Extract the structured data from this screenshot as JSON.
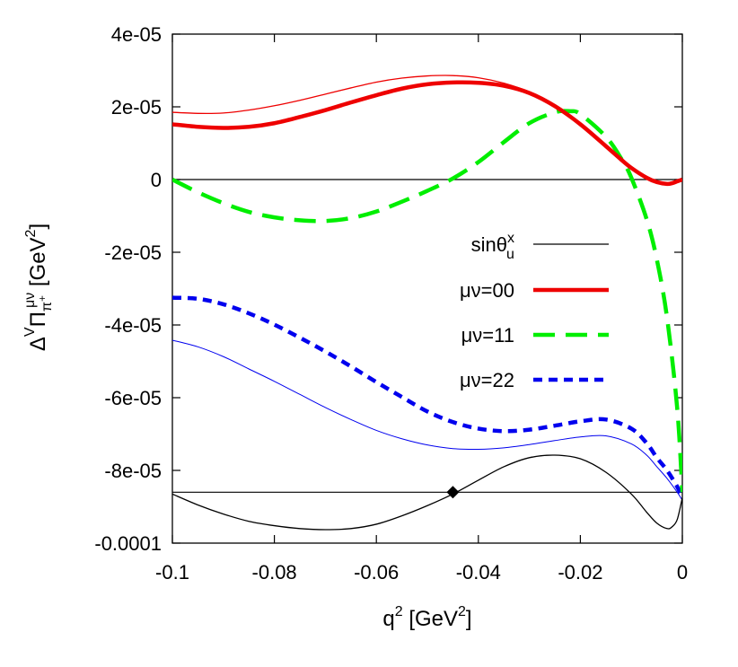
{
  "chart_data": {
    "type": "line",
    "xlabel": {
      "base": "q",
      "sup": "2",
      "rest": " [GeV",
      "sup2": "2",
      "close": "]"
    },
    "ylabel": {
      "delta": "Δ",
      "vsup": "V",
      "pi": "Π",
      "pisub": "π",
      "pisubsup": "+",
      "musup": "μν",
      "unit": " [GeV",
      "unitsup": "2",
      "close": "]"
    },
    "xlim": [
      -0.1,
      0
    ],
    "ylim": [
      -0.0001,
      4e-05
    ],
    "x_ticks": [
      {
        "value": -0.1,
        "label": "-0.1"
      },
      {
        "value": -0.08,
        "label": "-0.08"
      },
      {
        "value": -0.06,
        "label": "-0.06"
      },
      {
        "value": -0.04,
        "label": "-0.04"
      },
      {
        "value": -0.02,
        "label": "-0.02"
      },
      {
        "value": 0,
        "label": "0"
      }
    ],
    "y_ticks": [
      {
        "value": 4e-05,
        "label": "4e-05"
      },
      {
        "value": 2e-05,
        "label": "2e-05"
      },
      {
        "value": 0,
        "label": "0"
      },
      {
        "value": -2e-05,
        "label": "-2e-05"
      },
      {
        "value": -4e-05,
        "label": "-4e-05"
      },
      {
        "value": -6e-05,
        "label": "-6e-05"
      },
      {
        "value": -8e-05,
        "label": "-8e-05"
      },
      {
        "value": -0.0001,
        "label": "-0.0001"
      }
    ],
    "legend_position": "right-middle",
    "zero_line": 0,
    "reference_line": -8.6e-05,
    "marker": {
      "x": -0.045,
      "y": -8.6e-05,
      "shape": "diamond"
    },
    "series": [
      {
        "key": "sin",
        "name": "sinθ",
        "name_sup": "x",
        "name_sub": "u",
        "color": "#000000",
        "width": 1.3,
        "dash": "",
        "in_legend": true,
        "x": [
          -0.1,
          -0.095,
          -0.09,
          -0.085,
          -0.08,
          -0.075,
          -0.07,
          -0.065,
          -0.06,
          -0.055,
          -0.05,
          -0.045,
          -0.04,
          -0.035,
          -0.03,
          -0.025,
          -0.02,
          -0.015,
          -0.01,
          -0.007,
          -0.005,
          -0.003,
          -0.002,
          -0.001,
          0
        ],
        "y": [
          -8.65e-05,
          -8.95e-05,
          -9.2e-05,
          -9.4e-05,
          -9.52e-05,
          -9.6e-05,
          -9.63e-05,
          -9.6e-05,
          -9.48e-05,
          -9.25e-05,
          -8.97e-05,
          -8.65e-05,
          -8.27e-05,
          -7.9e-05,
          -7.65e-05,
          -7.58e-05,
          -7.68e-05,
          -8.05e-05,
          -8.65e-05,
          -9.15e-05,
          -9.45e-05,
          -9.6e-05,
          -9.55e-05,
          -9.35e-05,
          -8.75e-05
        ]
      },
      {
        "key": "mn00",
        "name": "μν=00",
        "color": "#ee0000",
        "width": 4.5,
        "dash": "",
        "in_legend": true,
        "x": [
          -0.1,
          -0.095,
          -0.09,
          -0.085,
          -0.08,
          -0.075,
          -0.07,
          -0.065,
          -0.06,
          -0.055,
          -0.05,
          -0.045,
          -0.04,
          -0.035,
          -0.03,
          -0.025,
          -0.02,
          -0.015,
          -0.012,
          -0.01,
          -0.007,
          -0.005,
          -0.003,
          -0.002,
          -0.001,
          0
        ],
        "y": [
          1.52e-05,
          1.45e-05,
          1.42e-05,
          1.45e-05,
          1.55e-05,
          1.72e-05,
          1.91e-05,
          2.12e-05,
          2.32e-05,
          2.5e-05,
          2.62e-05,
          2.67e-05,
          2.66e-05,
          2.58e-05,
          2.38e-05,
          2.02e-05,
          1.52e-05,
          9.2e-06,
          5.5e-06,
          3.2e-06,
          5e-07,
          -7e-07,
          -1.2e-06,
          -1e-06,
          -5e-07,
          0.0
        ]
      },
      {
        "key": "mn00thin",
        "name": "",
        "color": "#ee0000",
        "width": 1.3,
        "dash": "",
        "in_legend": false,
        "x": [
          -0.1,
          -0.095,
          -0.09,
          -0.085,
          -0.08,
          -0.075,
          -0.07,
          -0.065,
          -0.06,
          -0.055,
          -0.05,
          -0.045,
          -0.04,
          -0.035,
          -0.03,
          -0.025,
          -0.02,
          -0.015,
          -0.012,
          -0.01,
          -0.007,
          -0.005,
          -0.003,
          -0.002,
          -0.001,
          0
        ],
        "y": [
          1.85e-05,
          1.82e-05,
          1.83e-05,
          1.91e-05,
          2.03e-05,
          2.18e-05,
          2.35e-05,
          2.52e-05,
          2.68e-05,
          2.79e-05,
          2.85e-05,
          2.86e-05,
          2.8e-05,
          2.65e-05,
          2.41e-05,
          2.04e-05,
          1.54e-05,
          9.3e-06,
          5.6e-06,
          3.3e-06,
          6e-07,
          -6e-07,
          -1.1e-06,
          -1e-06,
          -5e-07,
          0.0
        ]
      },
      {
        "key": "mn11",
        "name": "μν=11",
        "color": "#00ee00",
        "width": 4.5,
        "dash": "24,12",
        "in_legend": true,
        "x": [
          -0.1,
          -0.095,
          -0.09,
          -0.085,
          -0.08,
          -0.075,
          -0.07,
          -0.065,
          -0.06,
          -0.055,
          -0.05,
          -0.045,
          -0.04,
          -0.035,
          -0.03,
          -0.025,
          -0.022,
          -0.02,
          -0.015,
          -0.012,
          -0.01,
          -0.007,
          -0.005,
          -0.003,
          -0.001,
          0
        ],
        "y": [
          0.0,
          -3.5e-06,
          -6.5e-06,
          -8.9e-06,
          -1.04e-05,
          -1.12e-05,
          -1.14e-05,
          -1.06e-05,
          -8.8e-06,
          -6.1e-06,
          -3.1e-06,
          3e-07,
          4.8e-06,
          1.03e-05,
          1.55e-05,
          1.85e-05,
          1.88e-05,
          1.8e-05,
          1.18e-05,
          5.8e-06,
          5e-07,
          -1.09e-05,
          -2.2e-05,
          -3.8e-05,
          -6.3e-05,
          -8.6e-05
        ]
      },
      {
        "key": "mn22",
        "name": "μν=22",
        "color": "#0000ee",
        "width": 4.5,
        "dash": "10,7",
        "in_legend": true,
        "x": [
          -0.1,
          -0.095,
          -0.09,
          -0.085,
          -0.08,
          -0.075,
          -0.07,
          -0.065,
          -0.06,
          -0.055,
          -0.05,
          -0.045,
          -0.04,
          -0.035,
          -0.03,
          -0.025,
          -0.02,
          -0.015,
          -0.01,
          -0.007,
          -0.005,
          -0.003,
          -0.001,
          0
        ],
        "y": [
          -3.25e-05,
          -3.28e-05,
          -3.43e-05,
          -3.68e-05,
          -3.99e-05,
          -4.35e-05,
          -4.73e-05,
          -5.14e-05,
          -5.57e-05,
          -5.98e-05,
          -6.38e-05,
          -6.67e-05,
          -6.85e-05,
          -6.92e-05,
          -6.88e-05,
          -6.77e-05,
          -6.65e-05,
          -6.6e-05,
          -6.85e-05,
          -7.25e-05,
          -7.65e-05,
          -8e-05,
          -8.45e-05,
          -8.75e-05
        ]
      },
      {
        "key": "mn22thin",
        "name": "",
        "color": "#0000ee",
        "width": 1.0,
        "dash": "",
        "in_legend": false,
        "x": [
          -0.1,
          -0.095,
          -0.09,
          -0.085,
          -0.08,
          -0.075,
          -0.07,
          -0.065,
          -0.06,
          -0.055,
          -0.05,
          -0.045,
          -0.04,
          -0.035,
          -0.03,
          -0.025,
          -0.02,
          -0.015,
          -0.01,
          -0.007,
          -0.005,
          -0.003,
          -0.001,
          0
        ],
        "y": [
          -4.42e-05,
          -4.6e-05,
          -4.87e-05,
          -5.21e-05,
          -5.55e-05,
          -5.91e-05,
          -6.27e-05,
          -6.6e-05,
          -6.9e-05,
          -7.13e-05,
          -7.3e-05,
          -7.4e-05,
          -7.42e-05,
          -7.38e-05,
          -7.29e-05,
          -7.18e-05,
          -7.08e-05,
          -7.05e-05,
          -7.27e-05,
          -7.58e-05,
          -7.9e-05,
          -8.22e-05,
          -8.6e-05,
          -8.82e-05
        ]
      }
    ]
  }
}
